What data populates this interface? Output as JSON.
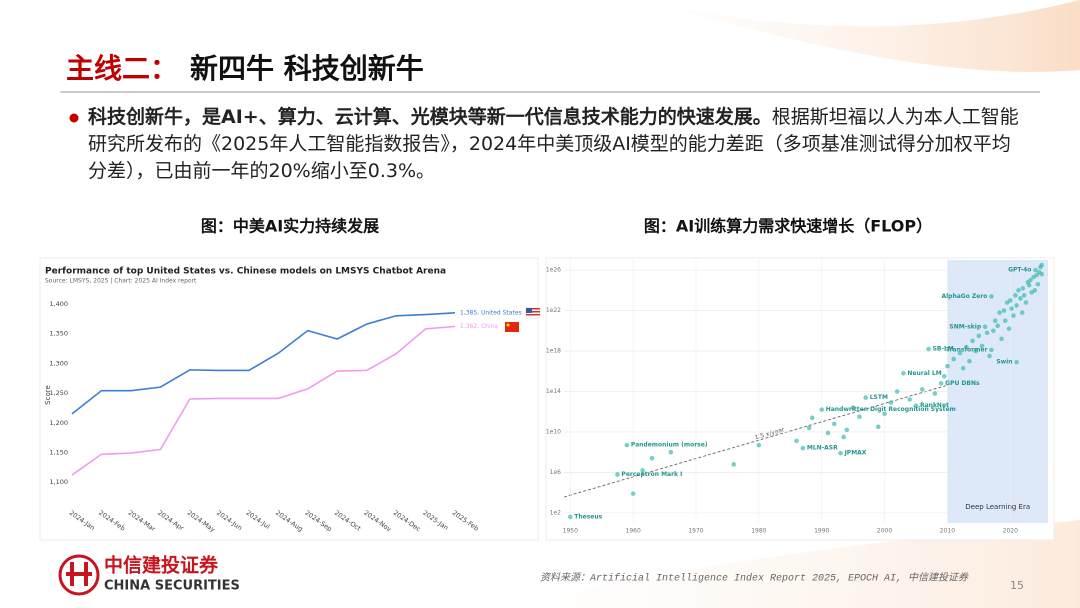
{
  "header": {
    "prefix": "主线二：",
    "title": "新四牛  科技创新牛"
  },
  "bullet": {
    "bold": "科技创新牛，是AI+、算力、云计算、光模块等新一代信息技术能力的快速发展。",
    "text": "根据斯坦福以人为本人工智能研究所发布的《2025年人工智能指数报告》，2024年中美顶级AI模型的能力差距（多项基准测试得分加权平均分差），已由前一年的20%缩小至0.3%。"
  },
  "chart_data": [
    {
      "type": "line",
      "caption": "图：中美AI实力持续发展",
      "title": "Performance of top United States vs. Chinese models on LMSYS Chatbot Arena",
      "subtitle": "Source: LMSYS, 2025 | Chart: 2025 AI Index report",
      "y_label": "Score",
      "categories": [
        "2024-Jan",
        "2024-Feb",
        "2024-Mar",
        "2024-Apr",
        "2024-May",
        "2024-Jun",
        "2024-Jul",
        "2024-Aug",
        "2024-Sep",
        "2024-Oct",
        "2024-Nov",
        "2024-Dec",
        "2025-Jan",
        "2025-Feb"
      ],
      "series": [
        {
          "label": "1,385, United States",
          "color": "#3b7fd4",
          "values": [
            1215,
            1254,
            1254,
            1260,
            1289,
            1288,
            1288,
            1317,
            1355,
            1341,
            1366,
            1380,
            1382,
            1385
          ]
        },
        {
          "label": "1,362, China",
          "color": "#ee9cf0",
          "values": [
            1112,
            1147,
            1149,
            1155,
            1240,
            1241,
            1241,
            1241,
            1257,
            1287,
            1288,
            1316,
            1358,
            1362
          ]
        }
      ],
      "ylim": [
        1060,
        1420
      ],
      "yticks": [
        {
          "value": 1100,
          "label": "1,100"
        },
        {
          "value": 1150,
          "label": "1,150"
        },
        {
          "value": 1200,
          "label": "1,200"
        },
        {
          "value": 1250,
          "label": "1,250"
        },
        {
          "value": 1300,
          "label": "1,300"
        },
        {
          "value": 1350,
          "label": "1,350"
        },
        {
          "value": 1400,
          "label": "1,400"
        }
      ],
      "grid": false
    },
    {
      "type": "scatter",
      "caption": "图：AI训练算力需求快速增长（FLOP）",
      "log_y": true,
      "color": "#3dbab2",
      "grid": true,
      "x": [
        1950,
        1957.5,
        1959,
        1960,
        1961.5,
        1963,
        1966,
        1976,
        1980,
        1986,
        1987,
        1988,
        1988.5,
        1990,
        1991,
        1992,
        1993,
        1993.5,
        1994,
        1995,
        1996,
        1997,
        1999,
        2000,
        2001,
        2002,
        2003,
        2004,
        2005,
        2006,
        2007,
        2008,
        2009,
        2009.5,
        2010,
        2011,
        2012,
        2012.5,
        2013,
        2013.5,
        2014,
        2014.5,
        2015,
        2015.5,
        2016,
        2016.3,
        2016.7,
        2017,
        2017,
        2017.3,
        2017.6,
        2018,
        2018.3,
        2018.6,
        2019,
        2019.2,
        2019.5,
        2019.8,
        2020,
        2020.2,
        2020.5,
        2020.8,
        2021,
        2021,
        2021.3,
        2021.6,
        2021.9,
        2022,
        2022.2,
        2022.5,
        2022.8,
        2023,
        2023.2,
        2023.4,
        2023.7,
        2023.9,
        2024,
        2024.2,
        2024.4,
        2024.6,
        2024.8,
        2025,
        2025
      ],
      "values": [
        40.0,
        630000.0,
        500000000.0,
        8000.0,
        1600000.0,
        25000000.0,
        100000000.0,
        6300000.0,
        500000000.0,
        1300000000.0,
        250000000.0,
        25000000000.0,
        250000000000.0,
        1600000000000.0,
        8000000000.0,
        63000000000.0,
        80000000.0,
        3200000000.0,
        16000000000.0,
        2500000000000.0,
        320000000000.0,
        25000000000000.0,
        32000000000.0,
        630000000000.0,
        8000000000000.0,
        100000000000000.0,
        6300000000000000.0,
        16000000000000.0,
        4000000000000.0,
        160000000000000.0,
        1.6e+18,
        63000000000000.0,
        630000000000000.0,
        3200000000000000.0,
        3.2e+16,
        1.6e+17,
        6.3e+17,
        2e+16,
        2.5e+18,
        1e+17,
        1e+19,
        1e+18,
        3.2e+19,
        3.2e+18,
        2.5e+20,
        6.3e+19,
        3.2e+17,
        2.5e+23,
        1.3e+18,
        1e+20,
        1e+21,
        3.2e+20,
        6.3e+21,
        1.6e+19,
        1e+22,
        1e+21,
        6.3e+22,
        1.6e+20,
        1e+23,
        1.6e+22,
        3.2e+21,
        3.2e+23,
        8e+16,
        3.2e+22,
        1e+24,
        1.6e+23,
        6.3e+21,
        1.6e+24,
        3.2e+23,
        6.3e+22,
        6.3e+24,
        3.2e+24,
        1e+25,
        6.3e+23,
        2e+25,
        1e+24,
        1e+26,
        3.2e+25,
        4e+24,
        6.3e+25,
        2e+26,
        4e+25,
        3.2e+26
      ],
      "labels": [
        "Theseus",
        "Perceptron Mark I",
        "Pandemonium (morse)",
        null,
        null,
        null,
        null,
        null,
        null,
        null,
        "MLN-ASR",
        null,
        null,
        "Handwritten Digit Recognition System",
        null,
        null,
        "JPMAX",
        null,
        null,
        null,
        null,
        "LSTM",
        null,
        null,
        null,
        null,
        "Neural LM",
        null,
        "RankNet",
        null,
        "SB-LM",
        null,
        "GPU DBNs",
        null,
        null,
        null,
        null,
        null,
        null,
        null,
        null,
        null,
        null,
        null,
        "SNM-skip",
        null,
        null,
        "AlphaGo Zero",
        "Transformer",
        null,
        null,
        null,
        null,
        null,
        null,
        null,
        null,
        null,
        null,
        null,
        null,
        null,
        "Swin",
        null,
        null,
        null,
        null,
        null,
        null,
        null,
        null,
        null,
        null,
        null,
        null,
        null,
        "GPT-4o",
        null,
        null,
        null,
        null,
        null,
        null
      ],
      "xlim": [
        1949,
        2026
      ],
      "xticks": [
        1950,
        1960,
        1970,
        1980,
        1990,
        2000,
        2010,
        2020
      ],
      "ylim": [
        10,
        1e+27
      ],
      "yticks": [
        {
          "value": 100.0,
          "label": "1e2"
        },
        {
          "value": 1000000.0,
          "label": "1e6"
        },
        {
          "value": 10000000000.0,
          "label": "1e10"
        },
        {
          "value": 100000000000000.0,
          "label": "1e14"
        },
        {
          "value": 1e+18,
          "label": "1e18"
        },
        {
          "value": 1e+22,
          "label": "1e22"
        },
        {
          "value": 1e+26,
          "label": "1e26"
        }
      ],
      "shaded_region": {
        "from": 2010,
        "label": "Deep Learning Era"
      },
      "trend_label": "1.5 x/year"
    }
  ],
  "footer": {
    "company": "中信建投证券",
    "company_en": "CHINA SECURITIES",
    "source": "资料来源：Artificial Intelligence Index Report 2025, EPOCH AI, 中信建投证券",
    "page": "15"
  }
}
